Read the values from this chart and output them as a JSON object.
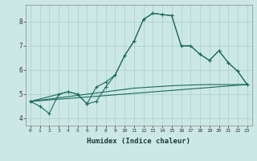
{
  "xlabel": "Humidex (Indice chaleur)",
  "background_color": "#cce8e4",
  "grid_color": "#aacfcb",
  "line_color": "#1a6b60",
  "x_ticks": [
    0,
    1,
    2,
    3,
    4,
    5,
    6,
    7,
    8,
    9,
    10,
    11,
    12,
    13,
    14,
    15,
    16,
    17,
    18,
    19,
    20,
    21,
    22,
    23
  ],
  "y_ticks": [
    4,
    5,
    6,
    7,
    8
  ],
  "ylim": [
    3.7,
    8.7
  ],
  "xlim": [
    -0.5,
    23.5
  ],
  "series1_x": [
    0,
    1,
    2,
    3,
    4,
    5,
    6,
    7,
    8,
    9,
    10,
    11,
    12,
    13,
    14,
    15,
    16,
    17,
    18,
    19,
    20,
    21,
    22,
    23
  ],
  "series1_y": [
    4.7,
    4.5,
    4.2,
    5.0,
    5.1,
    5.0,
    4.6,
    4.7,
    5.3,
    5.8,
    6.6,
    7.2,
    8.1,
    8.35,
    8.3,
    8.25,
    7.0,
    7.0,
    6.65,
    6.4,
    6.8,
    6.3,
    5.95,
    5.4
  ],
  "series2_x": [
    0,
    4,
    5,
    6,
    7,
    8,
    9,
    10,
    11,
    12,
    13,
    14,
    15,
    16,
    17,
    18,
    19,
    20,
    21,
    22,
    23
  ],
  "series2_y": [
    4.7,
    5.1,
    5.0,
    4.6,
    5.3,
    5.5,
    5.8,
    6.6,
    7.2,
    8.1,
    8.35,
    8.3,
    8.25,
    7.0,
    7.0,
    6.65,
    6.4,
    6.8,
    6.3,
    5.95,
    5.4
  ],
  "series3_x": [
    0,
    23
  ],
  "series3_y": [
    4.7,
    5.4
  ],
  "series4_x": [
    0,
    3,
    5,
    7,
    9,
    11,
    13,
    15,
    17,
    19,
    21,
    23
  ],
  "series4_y": [
    4.7,
    4.85,
    4.95,
    5.05,
    5.15,
    5.25,
    5.3,
    5.35,
    5.38,
    5.4,
    5.4,
    5.4
  ],
  "figsize": [
    3.2,
    2.0
  ],
  "dpi": 100
}
